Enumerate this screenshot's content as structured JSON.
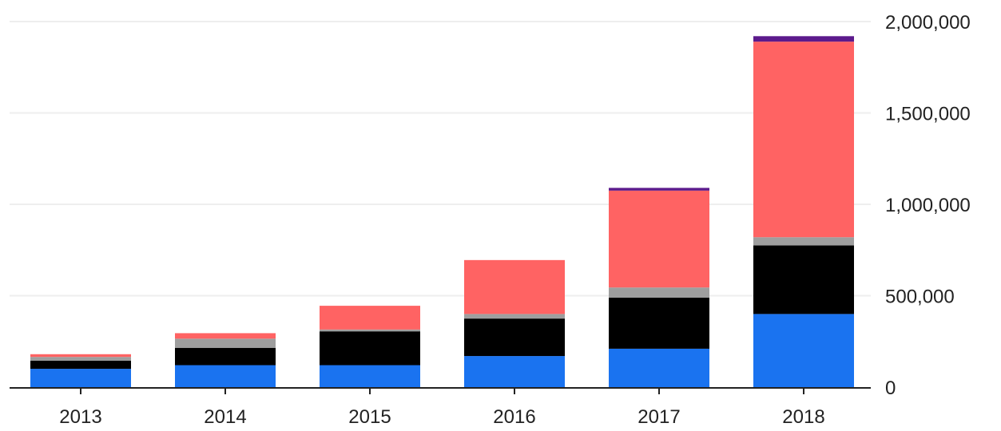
{
  "chart_data": {
    "type": "bar",
    "stacked": true,
    "categories": [
      "2013",
      "2014",
      "2015",
      "2016",
      "2017",
      "2018"
    ],
    "series": [
      {
        "color": "#1a73f0",
        "values": [
          100000,
          120000,
          120000,
          170000,
          210000,
          400000
        ]
      },
      {
        "color": "#000000",
        "values": [
          45000,
          95000,
          185000,
          205000,
          280000,
          375000
        ]
      },
      {
        "color": "#9e9e9e",
        "values": [
          20000,
          50000,
          10000,
          25000,
          55000,
          45000
        ]
      },
      {
        "color": "#ff6363",
        "values": [
          15000,
          30000,
          130000,
          295000,
          530000,
          1070000
        ]
      },
      {
        "color": "#5c1a8c",
        "values": [
          0,
          0,
          0,
          0,
          15000,
          30000
        ]
      }
    ],
    "ylim": [
      0,
      2000000
    ],
    "yticks": [
      {
        "value": 0,
        "label": "0"
      },
      {
        "value": 500000,
        "label": "500,000"
      },
      {
        "value": 1000000,
        "label": "1,000,000"
      },
      {
        "value": 1500000,
        "label": "1,500,000"
      },
      {
        "value": 2000000,
        "label": "2,000,000"
      }
    ],
    "grid": true,
    "y_axis_side": "right",
    "title": "",
    "xlabel": "",
    "ylabel": ""
  }
}
